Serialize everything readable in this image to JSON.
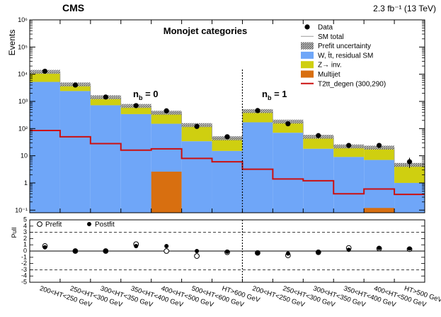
{
  "chart_data": {
    "type": "histogram",
    "experiment": "CMS",
    "luminosity": "2.3 fb⁻¹ (13 TeV)",
    "title": "Monojet categories",
    "ylabel": "Events",
    "pull_ylabel": "Pull",
    "ylim": [
      0.08,
      1000000
    ],
    "pull_ylim": [
      -5,
      5
    ],
    "categories": [
      "200<HT<250 GeV",
      "250<HT<300 GeV",
      "300<HT<350 GeV",
      "350<HT<400 GeV",
      "400<HT<500 GeV",
      "500<HT<600 GeV",
      "HT>600 GeV",
      "200<HT<250 GeV",
      "250<HT<300 GeV",
      "300<HT<350 GeV",
      "350<HT<400 GeV",
      "400<HT<500 GeV",
      "HT>500 GeV"
    ],
    "region_labels": [
      "n_b = 0",
      "n_b = 1"
    ],
    "legend": [
      "Data",
      "SM total",
      "Prefit uncertainty",
      "W, t̄t, residual SM",
      "Z→ inv.",
      "Multijet",
      "T2tt_degen (300,290)"
    ],
    "pull_legend": [
      "Prefit",
      "Postfit"
    ],
    "series": [
      {
        "name": "W, t̄t, residual SM",
        "color": "#6fa6f8",
        "values": [
          5200,
          2400,
          720,
          340,
          150,
          34,
          15,
          170,
          70,
          18,
          9,
          7,
          1.0
        ]
      },
      {
        "name": "Z→ inv.",
        "color": "#cfcf10",
        "values": [
          7000,
          1800,
          700,
          340,
          230,
          100,
          29,
          270,
          110,
          32,
          13,
          13,
          3.6
        ]
      },
      {
        "name": "Multijet",
        "color": "#d86f10",
        "values": [
          0,
          0,
          0,
          0,
          2.6,
          0,
          0,
          0,
          0,
          0,
          0,
          0.12,
          0
        ]
      },
      {
        "name": "SM total",
        "values": [
          12200,
          4200,
          1420,
          680,
          383,
          134,
          44,
          440,
          180,
          50,
          22,
          20,
          4.6
        ]
      },
      {
        "name": "Data",
        "values": [
          12900,
          4000,
          1450,
          700,
          450,
          120,
          50,
          460,
          150,
          55,
          24,
          24,
          6
        ]
      },
      {
        "name": "T2tt_degen (300,290)",
        "color": "#cc1010",
        "values": [
          85,
          50,
          28,
          16,
          18,
          8,
          6,
          3.2,
          1.4,
          1.2,
          0.4,
          0.6,
          0.38
        ]
      },
      {
        "name": "Prefit pull",
        "values": [
          0.8,
          0.0,
          0.0,
          1.1,
          0.0,
          -0.8,
          -0.2,
          -0.3,
          -0.7,
          -0.2,
          0.5,
          0.4,
          0.3
        ]
      },
      {
        "name": "Postfit pull",
        "values": [
          0.6,
          0.0,
          0.0,
          0.8,
          0.8,
          0.0,
          -0.1,
          -0.3,
          -0.4,
          -0.2,
          0.2,
          0.5,
          0.4
        ]
      }
    ]
  }
}
